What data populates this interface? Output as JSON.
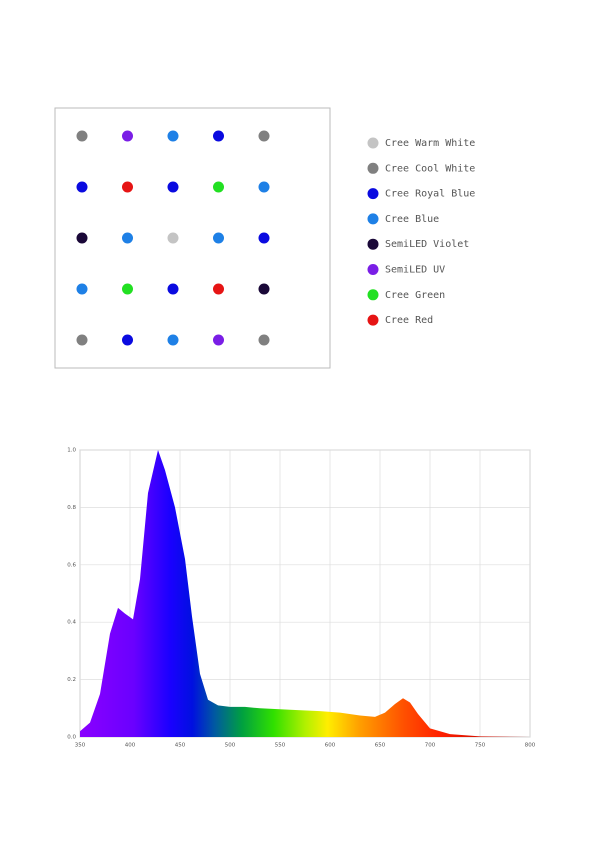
{
  "legend": [
    {
      "label": "Cree Warm White",
      "color": "#c4c4c4"
    },
    {
      "label": "Cree Cool White",
      "color": "#808080"
    },
    {
      "label": "Cree Royal Blue",
      "color": "#0a0ae0"
    },
    {
      "label": "Cree Blue",
      "color": "#1e80e6"
    },
    {
      "label": "SemiLED Violet",
      "color": "#1a0838"
    },
    {
      "label": "SemiLED UV",
      "color": "#7a1ee6"
    },
    {
      "label": "Cree Green",
      "color": "#22e022"
    },
    {
      "label": "Cree Red",
      "color": "#e61414"
    }
  ],
  "layout": [
    [
      1,
      5,
      3,
      2,
      1
    ],
    [
      2,
      7,
      2,
      6,
      3
    ],
    [
      4,
      3,
      0,
      3,
      2
    ],
    [
      3,
      6,
      2,
      7,
      4
    ],
    [
      1,
      2,
      3,
      5,
      1
    ]
  ],
  "chart_data": {
    "type": "area",
    "x": [
      350,
      360,
      370,
      380,
      388,
      395,
      403,
      410,
      418,
      428,
      435,
      445,
      455,
      462,
      470,
      478,
      488,
      500,
      515,
      530,
      560,
      590,
      610,
      630,
      645,
      655,
      665,
      673,
      680,
      688,
      700,
      720,
      750,
      800
    ],
    "values": [
      0.02,
      0.05,
      0.15,
      0.36,
      0.45,
      0.43,
      0.41,
      0.55,
      0.85,
      1.0,
      0.93,
      0.8,
      0.62,
      0.42,
      0.22,
      0.13,
      0.11,
      0.105,
      0.105,
      0.1,
      0.095,
      0.09,
      0.085,
      0.075,
      0.07,
      0.085,
      0.115,
      0.135,
      0.12,
      0.08,
      0.03,
      0.01,
      0.002,
      0.0
    ],
    "xlim": [
      350,
      800
    ],
    "ylim": [
      0,
      1
    ],
    "xticks": [
      350,
      400,
      450,
      500,
      550,
      600,
      650,
      700,
      750,
      800
    ],
    "yticks": [
      {
        "value": 0,
        "label": "0.0"
      },
      0.2,
      0.4,
      0.6,
      0.8,
      {
        "value": 1,
        "label": "1.0"
      }
    ],
    "grid": true
  }
}
